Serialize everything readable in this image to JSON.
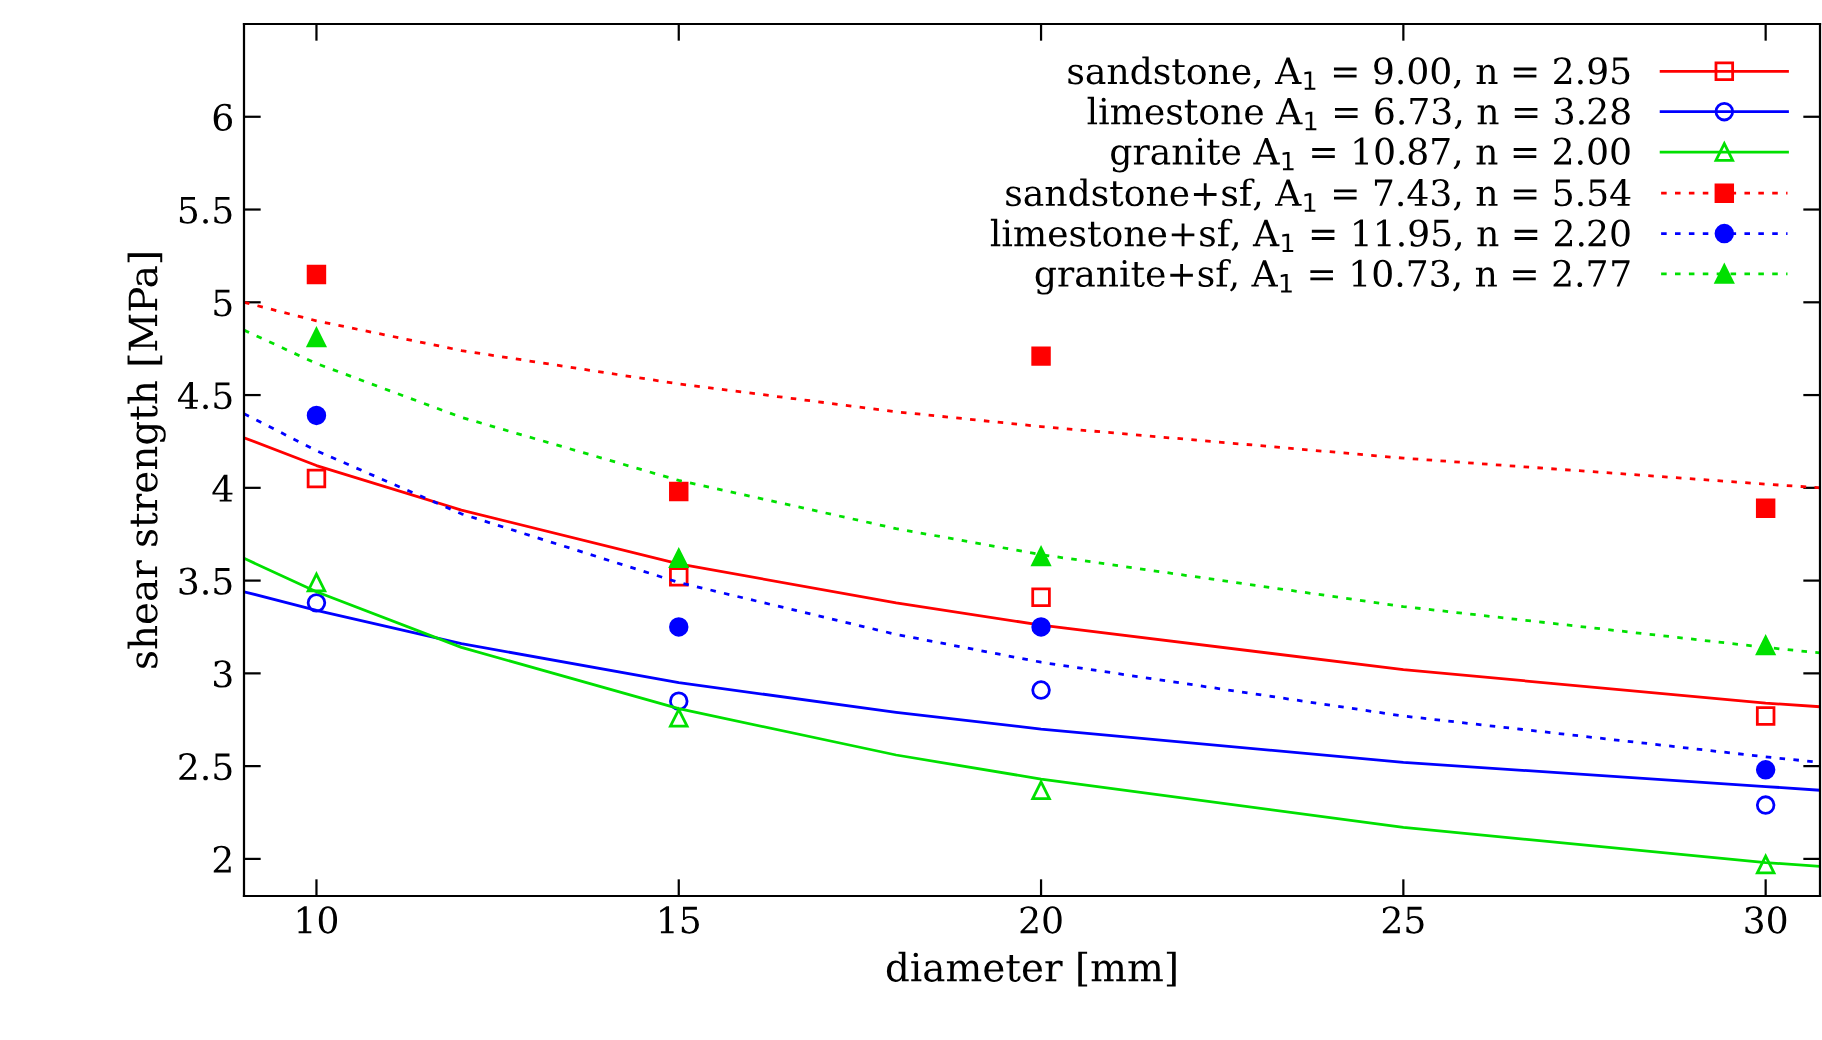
{
  "chart_data": {
    "type": "scatter",
    "xlabel": "diameter [mm]",
    "ylabel": "shear strength [MPa]",
    "xlim": [
      9,
      30.75
    ],
    "ylim": [
      1.8,
      6.5
    ],
    "xticks": [
      10,
      15,
      20,
      25,
      30
    ],
    "yticks": [
      2,
      2.5,
      3,
      3.5,
      4,
      4.5,
      5,
      5.5,
      6
    ],
    "grid": false,
    "legend": "top right",
    "series": [
      {
        "name": "sandstone, A$_{1}$ = 9.00, n = 2.95",
        "color": "#ff0000",
        "marker": "square",
        "x": [
          10,
          15,
          20,
          30
        ],
        "values": [
          4.05,
          3.52,
          3.41,
          2.77
        ]
      },
      {
        "type": "line",
        "color": "#ff0000",
        "line_style": "solid",
        "x": [
          9,
          10,
          12,
          15,
          18,
          20,
          25,
          30,
          30.75
        ],
        "values": [
          4.27,
          4.12,
          3.88,
          3.59,
          3.38,
          3.26,
          3.02,
          2.84,
          2.82
        ]
      },
      {
        "name": "limestone A$_{1}$ = 6.73, n = 3.28",
        "color": "#0000ff",
        "marker": "circle",
        "x": [
          10,
          15,
          20,
          30
        ],
        "values": [
          3.38,
          2.85,
          2.91,
          2.29
        ]
      },
      {
        "type": "line",
        "color": "#0000ff",
        "line_style": "solid",
        "x": [
          9,
          10,
          12,
          15,
          18,
          20,
          25,
          30,
          30.75
        ],
        "values": [
          3.44,
          3.34,
          3.16,
          2.95,
          2.79,
          2.7,
          2.52,
          2.39,
          2.37
        ]
      },
      {
        "name": "granite A$_{1}$ = 10.87, n = 2.00",
        "color": "#00e000",
        "marker": "triangle",
        "x": [
          10,
          15,
          20,
          30
        ],
        "values": [
          3.49,
          2.76,
          2.37,
          1.97
        ]
      },
      {
        "type": "line",
        "color": "#00e000",
        "line_style": "solid",
        "x": [
          9,
          10,
          12,
          15,
          18,
          20,
          25,
          30,
          30.75
        ],
        "values": [
          3.62,
          3.44,
          3.14,
          2.81,
          2.56,
          2.43,
          2.17,
          1.98,
          1.96
        ]
      },
      {
        "name": "sandstone+sf, A$_{1}$ = 7.43, n = 5.54",
        "color": "#ff0000",
        "marker": "square",
        "x": [
          10,
          15,
          20,
          30
        ],
        "values": [
          5.15,
          3.98,
          4.71,
          3.89
        ]
      },
      {
        "type": "line",
        "color": "#ff0000",
        "line_style": "dotted",
        "x": [
          9,
          10,
          12,
          15,
          18,
          20,
          25,
          30,
          30.75
        ],
        "values": [
          5.0,
          4.9,
          4.74,
          4.56,
          4.41,
          4.33,
          4.16,
          4.02,
          4.0
        ]
      },
      {
        "name": "limestone+sf, A$_{1}$ = 11.95, n = 2.20",
        "color": "#0000ff",
        "marker": "circle",
        "x": [
          10,
          15,
          20,
          30
        ],
        "values": [
          4.39,
          3.25,
          3.25,
          2.48
        ]
      },
      {
        "type": "line",
        "color": "#0000ff",
        "line_style": "dotted",
        "x": [
          9,
          10,
          12,
          15,
          18,
          20,
          25,
          30,
          30.75
        ],
        "values": [
          4.4,
          4.2,
          3.86,
          3.49,
          3.21,
          3.06,
          2.77,
          2.55,
          2.52
        ]
      },
      {
        "name": "granite+sf, A$_{1}$ = 10.73, n = 2.77",
        "color": "#00e000",
        "marker": "triangle",
        "x": [
          10,
          15,
          20,
          30
        ],
        "values": [
          4.81,
          3.62,
          3.63,
          3.15
        ]
      },
      {
        "type": "line",
        "color": "#00e000",
        "line_style": "dotted",
        "x": [
          9,
          10,
          12,
          15,
          18,
          20,
          25,
          30,
          30.75
        ],
        "values": [
          4.85,
          4.67,
          4.38,
          4.04,
          3.78,
          3.64,
          3.36,
          3.14,
          3.11
        ]
      }
    ]
  }
}
